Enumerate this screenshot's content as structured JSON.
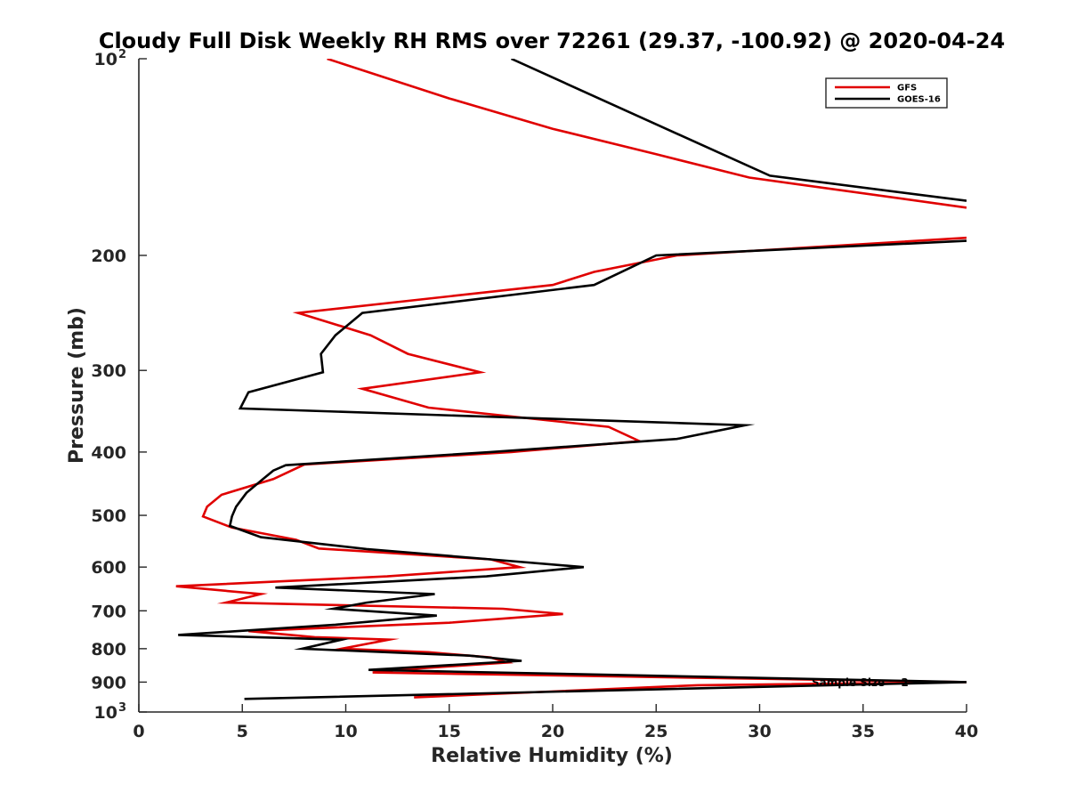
{
  "chart_data": {
    "type": "line",
    "title": "Cloudy Full Disk Weekly RH RMS over 72261 (29.37, -100.92) @ 2020-04-24",
    "xlabel": "Relative Humidity (%)",
    "ylabel": "Pressure (mb)",
    "xlim": [
      0,
      40
    ],
    "ylim": [
      100,
      1000
    ],
    "yscale": "log",
    "y_reversed": true,
    "grid": false,
    "legend_position": "top-right",
    "x_ticks": [
      "0",
      "5",
      "10",
      "15",
      "20",
      "25",
      "30",
      "35",
      "40"
    ],
    "y_ticks": [
      {
        "value": 100,
        "base": "10",
        "exp": "2"
      },
      {
        "value": 200,
        "label": "200"
      },
      {
        "value": 300,
        "label": "300"
      },
      {
        "value": 400,
        "label": "400"
      },
      {
        "value": 500,
        "label": "500"
      },
      {
        "value": 600,
        "label": "600"
      },
      {
        "value": 700,
        "label": "700"
      },
      {
        "value": 800,
        "label": "800"
      },
      {
        "value": 900,
        "label": "900"
      },
      {
        "value": 1000,
        "base": "10",
        "exp": "3"
      }
    ],
    "annotation": "Sample Size = 2",
    "series": [
      {
        "name": "GFS",
        "color": "#e00000",
        "segments": [
          [
            {
              "x": 9.1,
              "p": 100
            },
            {
              "x": 15,
              "p": 115
            },
            {
              "x": 20,
              "p": 128
            },
            {
              "x": 25,
              "p": 140
            },
            {
              "x": 29.5,
              "p": 152
            },
            {
              "x": 40,
              "p": 169
            }
          ],
          [
            {
              "x": 40,
              "p": 188
            },
            {
              "x": 26,
              "p": 200
            },
            {
              "x": 22,
              "p": 212
            },
            {
              "x": 20,
              "p": 222
            },
            {
              "x": 7.7,
              "p": 245
            },
            {
              "x": 11.2,
              "p": 265
            },
            {
              "x": 13,
              "p": 283
            },
            {
              "x": 16.5,
              "p": 302
            },
            {
              "x": 10.8,
              "p": 320
            },
            {
              "x": 14,
              "p": 342
            },
            {
              "x": 22.7,
              "p": 366
            },
            {
              "x": 24.2,
              "p": 385
            },
            {
              "x": 18,
              "p": 400
            },
            {
              "x": 8,
              "p": 418
            },
            {
              "x": 6.5,
              "p": 440
            },
            {
              "x": 4,
              "p": 465
            },
            {
              "x": 3.3,
              "p": 485
            },
            {
              "x": 3.1,
              "p": 502
            },
            {
              "x": 4.5,
              "p": 522
            },
            {
              "x": 7.6,
              "p": 545
            },
            {
              "x": 8.7,
              "p": 562
            },
            {
              "x": 17,
              "p": 584
            },
            {
              "x": 18.4,
              "p": 600
            },
            {
              "x": 12,
              "p": 620
            },
            {
              "x": 1.8,
              "p": 642
            },
            {
              "x": 5.9,
              "p": 660
            },
            {
              "x": 4.2,
              "p": 680
            },
            {
              "x": 17.6,
              "p": 695
            },
            {
              "x": 20.5,
              "p": 708
            },
            {
              "x": 15,
              "p": 730
            },
            {
              "x": 5.3,
              "p": 752
            },
            {
              "x": 8.5,
              "p": 768
            },
            {
              "x": 12.1,
              "p": 775
            },
            {
              "x": 9.8,
              "p": 800
            },
            {
              "x": 14,
              "p": 810
            },
            {
              "x": 17,
              "p": 825
            },
            {
              "x": 17.8,
              "p": 840
            },
            {
              "x": 12.5,
              "p": 862
            },
            {
              "x": 11.3,
              "p": 870
            },
            {
              "x": 40,
              "p": 900
            },
            {
              "x": 27,
              "p": 910
            },
            {
              "x": 13.3,
              "p": 950
            }
          ]
        ]
      },
      {
        "name": "GOES-16",
        "color": "#000000",
        "segments": [
          [
            {
              "x": 18,
              "p": 100
            },
            {
              "x": 25,
              "p": 126
            },
            {
              "x": 30.5,
              "p": 151
            },
            {
              "x": 40,
              "p": 165
            }
          ],
          [
            {
              "x": 40,
              "p": 190
            },
            {
              "x": 25,
              "p": 200
            },
            {
              "x": 22,
              "p": 222
            },
            {
              "x": 10.8,
              "p": 245
            },
            {
              "x": 9.5,
              "p": 265
            },
            {
              "x": 8.8,
              "p": 283
            },
            {
              "x": 8.9,
              "p": 302
            },
            {
              "x": 5.3,
              "p": 324
            },
            {
              "x": 4.9,
              "p": 343
            },
            {
              "x": 29.3,
              "p": 364
            },
            {
              "x": 26,
              "p": 382
            },
            {
              "x": 17,
              "p": 400
            },
            {
              "x": 7.1,
              "p": 419
            },
            {
              "x": 6.5,
              "p": 427
            },
            {
              "x": 6,
              "p": 440
            },
            {
              "x": 5.2,
              "p": 462
            },
            {
              "x": 4.7,
              "p": 485
            },
            {
              "x": 4.5,
              "p": 502
            },
            {
              "x": 4.4,
              "p": 519
            },
            {
              "x": 5.9,
              "p": 540
            },
            {
              "x": 11,
              "p": 563
            },
            {
              "x": 17,
              "p": 584
            },
            {
              "x": 21.5,
              "p": 600
            },
            {
              "x": 16.8,
              "p": 620
            },
            {
              "x": 6.6,
              "p": 645
            },
            {
              "x": 14.3,
              "p": 660
            },
            {
              "x": 11,
              "p": 680
            },
            {
              "x": 9.4,
              "p": 695
            },
            {
              "x": 14.4,
              "p": 712
            },
            {
              "x": 9.5,
              "p": 735
            },
            {
              "x": 1.9,
              "p": 762
            },
            {
              "x": 9.8,
              "p": 775
            },
            {
              "x": 7.9,
              "p": 800
            },
            {
              "x": 16,
              "p": 820
            },
            {
              "x": 18.5,
              "p": 835
            },
            {
              "x": 11.1,
              "p": 862
            },
            {
              "x": 40,
              "p": 900
            },
            {
              "x": 5.1,
              "p": 955
            }
          ]
        ]
      }
    ]
  }
}
